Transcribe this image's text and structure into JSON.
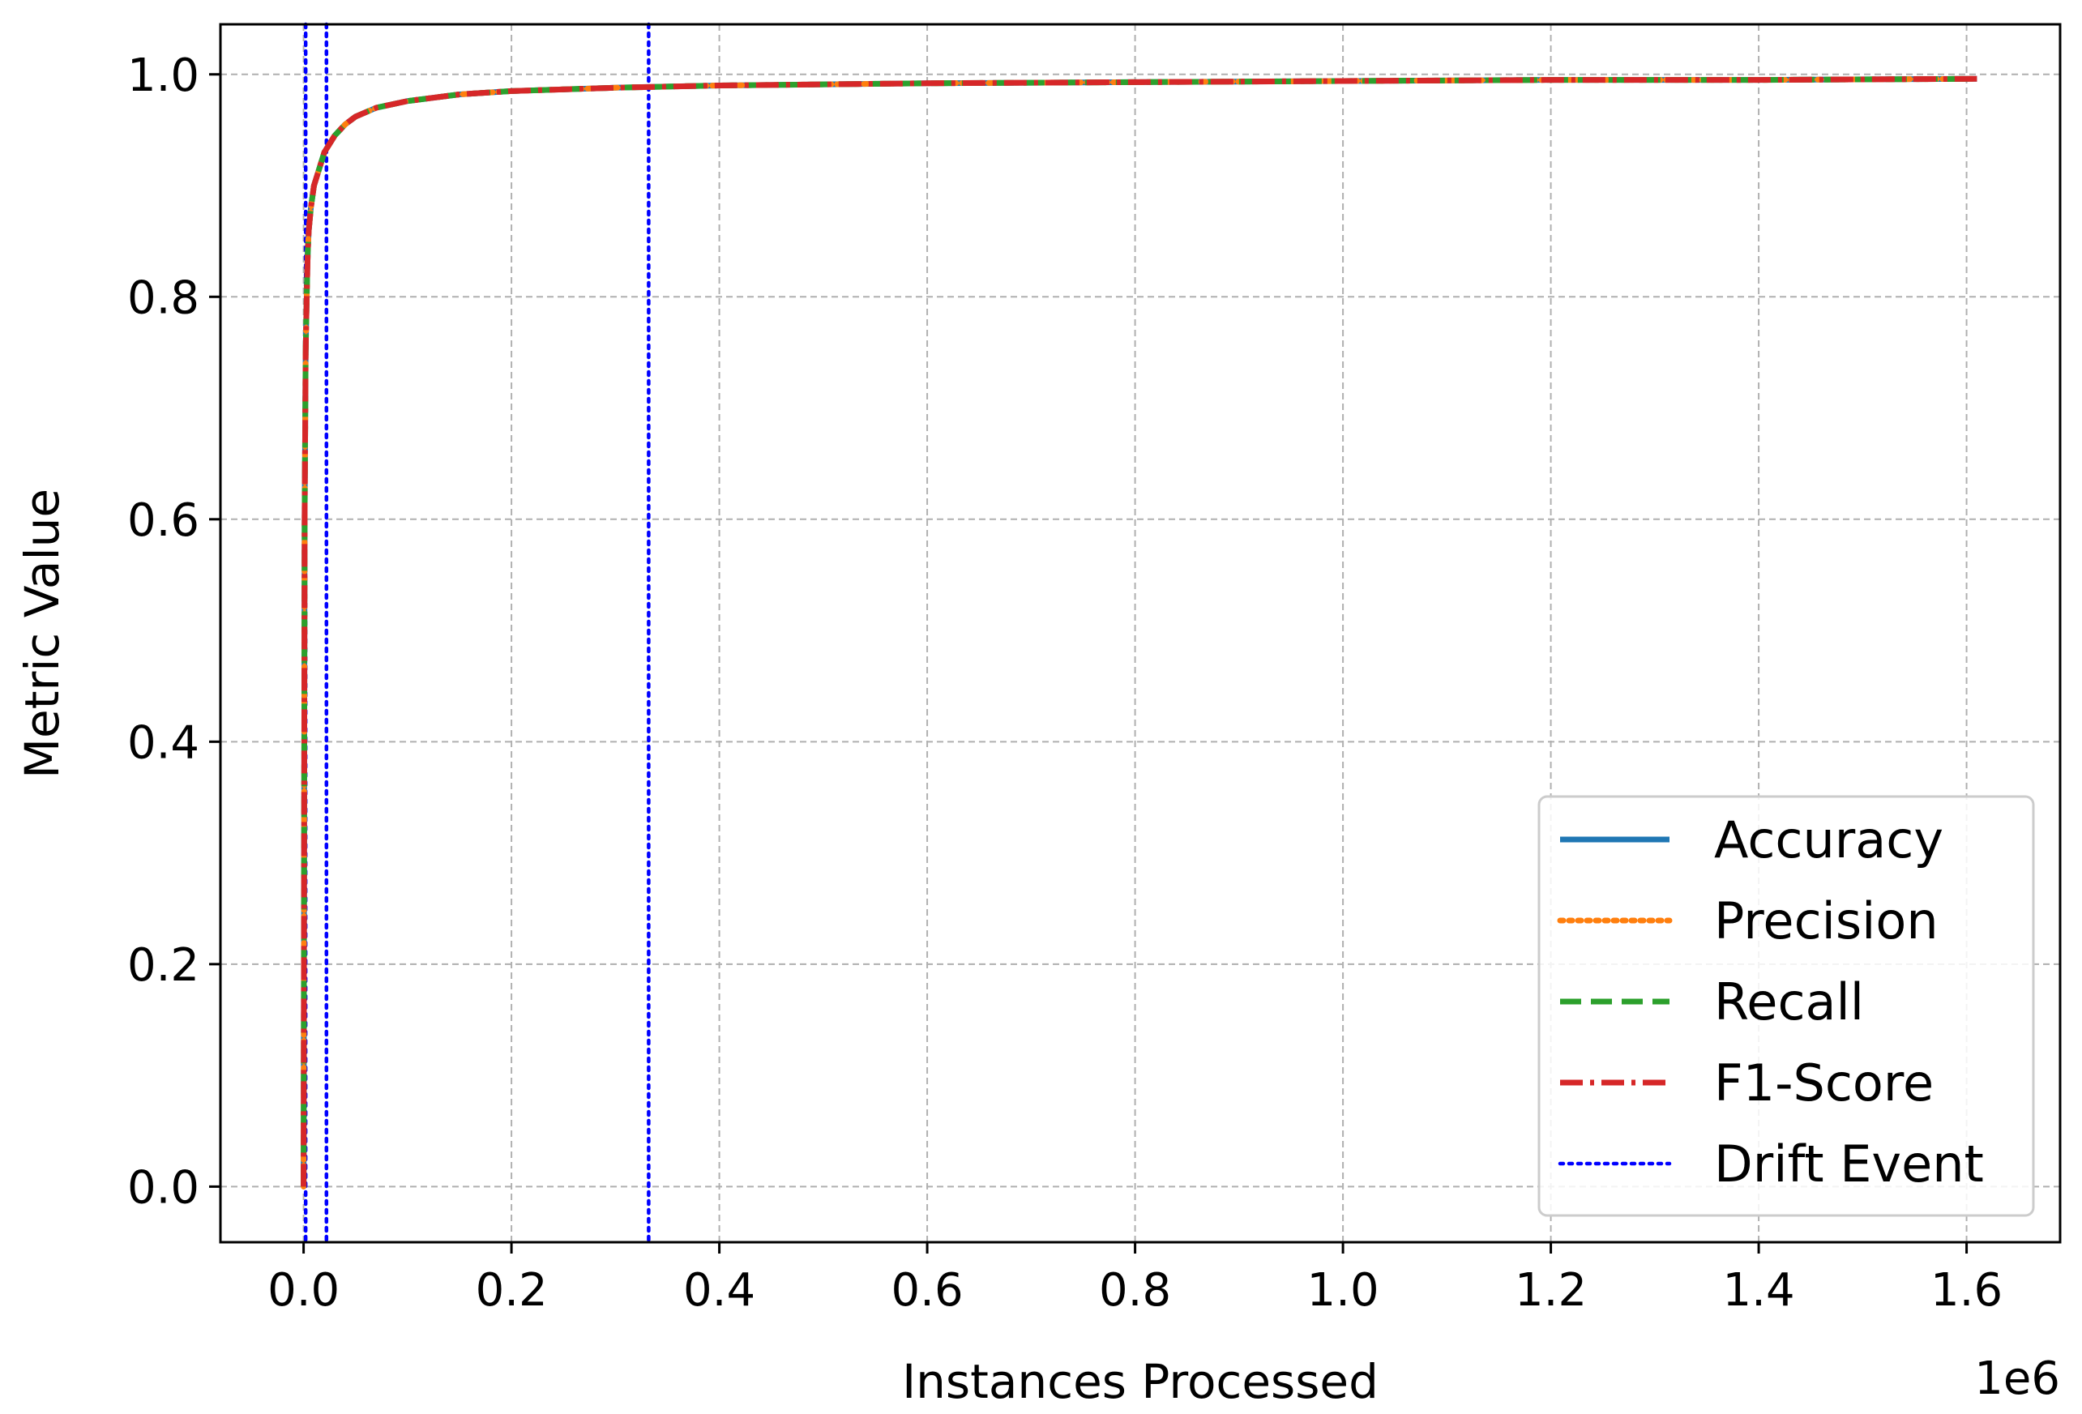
{
  "chart_data": {
    "type": "line",
    "title": "",
    "xlabel": "Instances Processed",
    "ylabel": "Metric Value",
    "x_offset_label": "1e6",
    "x_scale": 1000000,
    "xlim": [
      -80000,
      1690000
    ],
    "ylim": [
      -0.05,
      1.045
    ],
    "x_ticks": [
      0.0,
      0.2,
      0.4,
      0.6,
      0.8,
      1.0,
      1.2,
      1.4,
      1.6
    ],
    "x_tick_labels": [
      "0.0",
      "0.2",
      "0.4",
      "0.6",
      "0.8",
      "1.0",
      "1.2",
      "1.4",
      "1.6"
    ],
    "y_ticks": [
      0.0,
      0.2,
      0.4,
      0.6,
      0.8,
      1.0
    ],
    "y_tick_labels": [
      "0.0",
      "0.2",
      "0.4",
      "0.6",
      "0.8",
      "1.0"
    ],
    "grid": true,
    "legend_position": "lower-right",
    "x": [
      0,
      1000,
      2000,
      3000,
      4000,
      5000,
      7000,
      10000,
      15000,
      20000,
      30000,
      40000,
      50000,
      70000,
      100000,
      150000,
      200000,
      300000,
      400000,
      600000,
      800000,
      1000000,
      1200000,
      1400000,
      1610000
    ],
    "series": [
      {
        "name": "Accuracy",
        "color": "#1f77b4",
        "style": "solid",
        "values": [
          0.0,
          0.6,
          0.75,
          0.8,
          0.84,
          0.86,
          0.88,
          0.9,
          0.915,
          0.93,
          0.945,
          0.955,
          0.962,
          0.97,
          0.976,
          0.982,
          0.985,
          0.988,
          0.99,
          0.992,
          0.993,
          0.994,
          0.995,
          0.995,
          0.996
        ]
      },
      {
        "name": "Precision",
        "color": "#ff7f0e",
        "style": "dotted",
        "values": [
          0.0,
          0.6,
          0.75,
          0.8,
          0.84,
          0.86,
          0.88,
          0.9,
          0.915,
          0.93,
          0.945,
          0.955,
          0.962,
          0.97,
          0.976,
          0.982,
          0.985,
          0.988,
          0.99,
          0.992,
          0.993,
          0.994,
          0.995,
          0.995,
          0.996
        ]
      },
      {
        "name": "Recall",
        "color": "#2ca02c",
        "style": "dashed",
        "values": [
          0.0,
          0.6,
          0.75,
          0.8,
          0.84,
          0.86,
          0.88,
          0.9,
          0.915,
          0.93,
          0.945,
          0.955,
          0.962,
          0.97,
          0.976,
          0.982,
          0.985,
          0.988,
          0.99,
          0.992,
          0.993,
          0.994,
          0.995,
          0.995,
          0.996
        ]
      },
      {
        "name": "F1-Score",
        "color": "#d62728",
        "style": "dashdot",
        "values": [
          0.0,
          0.6,
          0.75,
          0.8,
          0.84,
          0.86,
          0.88,
          0.9,
          0.915,
          0.93,
          0.945,
          0.955,
          0.962,
          0.97,
          0.976,
          0.982,
          0.985,
          0.988,
          0.99,
          0.992,
          0.993,
          0.994,
          0.995,
          0.995,
          0.996
        ]
      }
    ],
    "drift_events": {
      "name": "Drift Event",
      "color": "#0000ff",
      "style": "dotted",
      "x": [
        2000,
        22000,
        332000
      ]
    }
  }
}
